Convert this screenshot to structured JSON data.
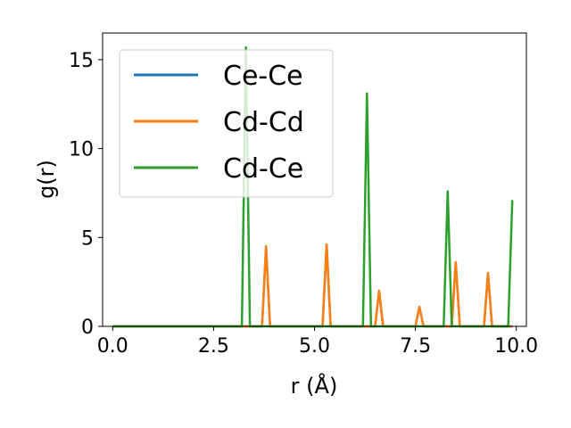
{
  "chart_data": {
    "type": "line",
    "title": "",
    "xlabel": "r (Å)",
    "ylabel": "g(r)",
    "xlim": [
      -0.25,
      10.25
    ],
    "ylim": [
      0,
      16.5
    ],
    "x_ticks": [
      0.0,
      2.5,
      5.0,
      7.5,
      10.0
    ],
    "x_tick_labels": [
      "0.0",
      "2.5",
      "5.0",
      "7.5",
      "10.0"
    ],
    "y_ticks": [
      0,
      5,
      10,
      15
    ],
    "y_tick_labels": [
      "0",
      "5",
      "10",
      "15"
    ],
    "grid": false,
    "legend_position": "upper-left",
    "series": [
      {
        "name": "Ce-Ce",
        "color": "#1f77b4",
        "x": [
          0.0,
          3.7,
          3.8,
          3.9,
          5.2,
          5.3,
          5.4,
          6.5,
          6.6,
          6.7,
          7.5,
          7.6,
          7.7,
          8.4,
          8.5,
          8.6,
          9.2,
          9.3,
          9.4,
          9.9
        ],
        "y": [
          0,
          0,
          4.5,
          0,
          0,
          4.6,
          0,
          0,
          2.0,
          0,
          0,
          1.1,
          0,
          0,
          3.6,
          0,
          0,
          3.0,
          0,
          0
        ]
      },
      {
        "name": "Cd-Cd",
        "color": "#ff7f0e",
        "x": [
          0.0,
          3.7,
          3.8,
          3.9,
          5.2,
          5.3,
          5.4,
          6.5,
          6.6,
          6.7,
          7.5,
          7.6,
          7.7,
          8.4,
          8.5,
          8.6,
          9.2,
          9.3,
          9.4,
          9.9
        ],
        "y": [
          0,
          0,
          4.5,
          0,
          0,
          4.6,
          0,
          0,
          2.0,
          0,
          0,
          1.1,
          0,
          0,
          3.6,
          0,
          0,
          3.0,
          0,
          0
        ]
      },
      {
        "name": "Cd-Ce",
        "color": "#2ca02c",
        "x": [
          0.0,
          3.2,
          3.3,
          3.4,
          6.2,
          6.3,
          6.4,
          8.2,
          8.3,
          8.4,
          9.8,
          9.9
        ],
        "y": [
          0,
          0,
          15.7,
          0,
          0,
          13.1,
          0,
          0,
          7.6,
          0,
          0,
          7.1
        ]
      }
    ]
  }
}
